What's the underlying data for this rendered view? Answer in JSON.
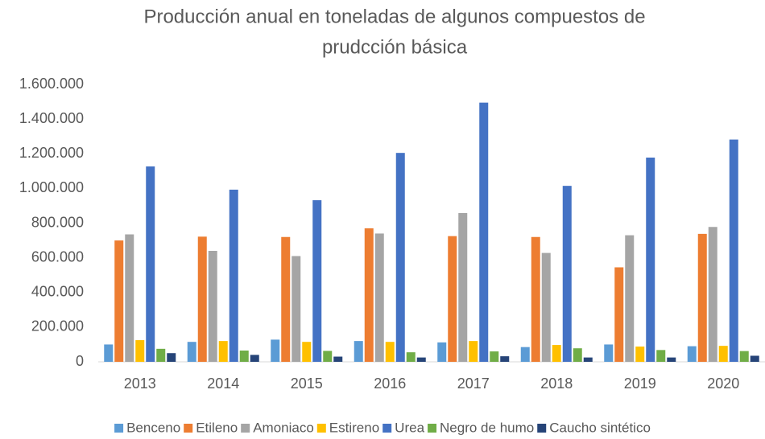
{
  "chart_data": {
    "type": "bar",
    "title": [
      "Producción anual en toneladas de algunos compuestos de",
      "prudcción básica"
    ],
    "categories": [
      "2013",
      "2014",
      "2015",
      "2016",
      "2017",
      "2018",
      "2019",
      "2020"
    ],
    "series": [
      {
        "name": "Benceno",
        "color": "#5b9bd5",
        "values": [
          100000,
          115000,
          128000,
          120000,
          112000,
          85000,
          100000,
          90000
        ]
      },
      {
        "name": "Etileno",
        "color": "#ed7d31",
        "values": [
          700000,
          722000,
          720000,
          770000,
          725000,
          720000,
          545000,
          738000
        ]
      },
      {
        "name": "Amoniaco",
        "color": "#a5a5a5",
        "values": [
          735000,
          640000,
          610000,
          740000,
          858000,
          628000,
          730000,
          778000
        ]
      },
      {
        "name": "Estireno",
        "color": "#ffc000",
        "values": [
          125000,
          120000,
          115000,
          115000,
          120000,
          97000,
          88000,
          92000
        ]
      },
      {
        "name": "Urea",
        "color": "#4472c4",
        "values": [
          1127000,
          993000,
          932000,
          1205000,
          1495000,
          1015000,
          1178000,
          1282000
        ]
      },
      {
        "name": "Negro de humo",
        "color": "#70ad47",
        "values": [
          75000,
          65000,
          63000,
          55000,
          60000,
          78000,
          68000,
          62000
        ]
      },
      {
        "name": "Caucho sintético",
        "color": "#264478",
        "values": [
          50000,
          40000,
          30000,
          25000,
          32000,
          25000,
          25000,
          35000
        ]
      }
    ],
    "ylim": [
      0,
      1600000
    ],
    "yticks": [
      0,
      {
        "value": 200000,
        "label": "200.000"
      },
      {
        "value": 400000,
        "label": "400.000"
      },
      {
        "value": 600000,
        "label": "600.000"
      },
      {
        "value": 800000,
        "label": "800.000"
      },
      {
        "value": 1000000,
        "label": "1.000.000"
      },
      {
        "value": 1200000,
        "label": "1.200.000"
      },
      {
        "value": 1400000,
        "label": "1.400.000"
      },
      {
        "value": 1600000,
        "label": "1.600.000"
      }
    ],
    "grid": false,
    "legend": "bottom"
  }
}
